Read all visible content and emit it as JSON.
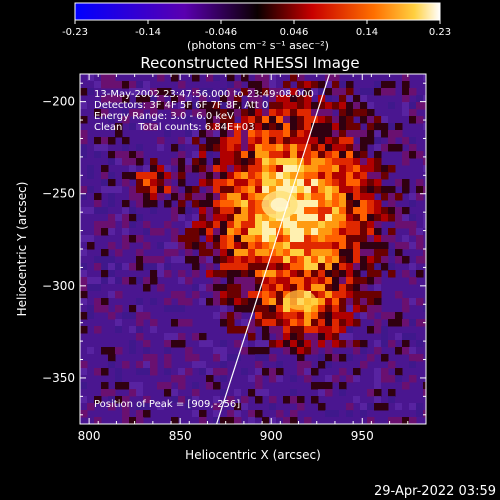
{
  "chart_data": {
    "type": "heatmap",
    "title": "Reconstructed RHESSI Image",
    "colorbar": {
      "ticks": [
        "-0.23",
        "-0.14",
        "-0.046",
        "0.046",
        "0.14",
        "0.23"
      ],
      "range": [
        -0.23,
        0.23
      ],
      "unit_label": "(photons cm⁻² s⁻¹ asec⁻²)",
      "colors": [
        "#0000ff",
        "#6000c0",
        "#000000",
        "#c00000",
        "#ff8000",
        "#ffffff"
      ]
    },
    "xlabel": "Heliocentric X (arcsec)",
    "ylabel": "Heliocentric Y (arcsec)",
    "xlim": [
      795,
      985
    ],
    "ylim": [
      -375,
      -185
    ],
    "x_ticks": [
      800,
      850,
      900,
      950
    ],
    "y_ticks": [
      -200,
      -250,
      -300,
      -350
    ],
    "info_lines": [
      "13-May-2002 23:47:56.000 to 23:49:08.000",
      "Detectors: 3F 4F 5F 6F 7F 8F, Att 0",
      "Energy Range: 3.0 - 6.0 keV",
      "Clean     Total counts: 6.84E+03"
    ],
    "peak_label": "Position of Peak = [909,-256]",
    "peak": [
      909,
      -256
    ],
    "limb_line": {
      "x": [
        870,
        932
      ],
      "y": [
        -375,
        -185
      ]
    }
  },
  "footer": {
    "timestamp": "29-Apr-2022 03:59"
  }
}
